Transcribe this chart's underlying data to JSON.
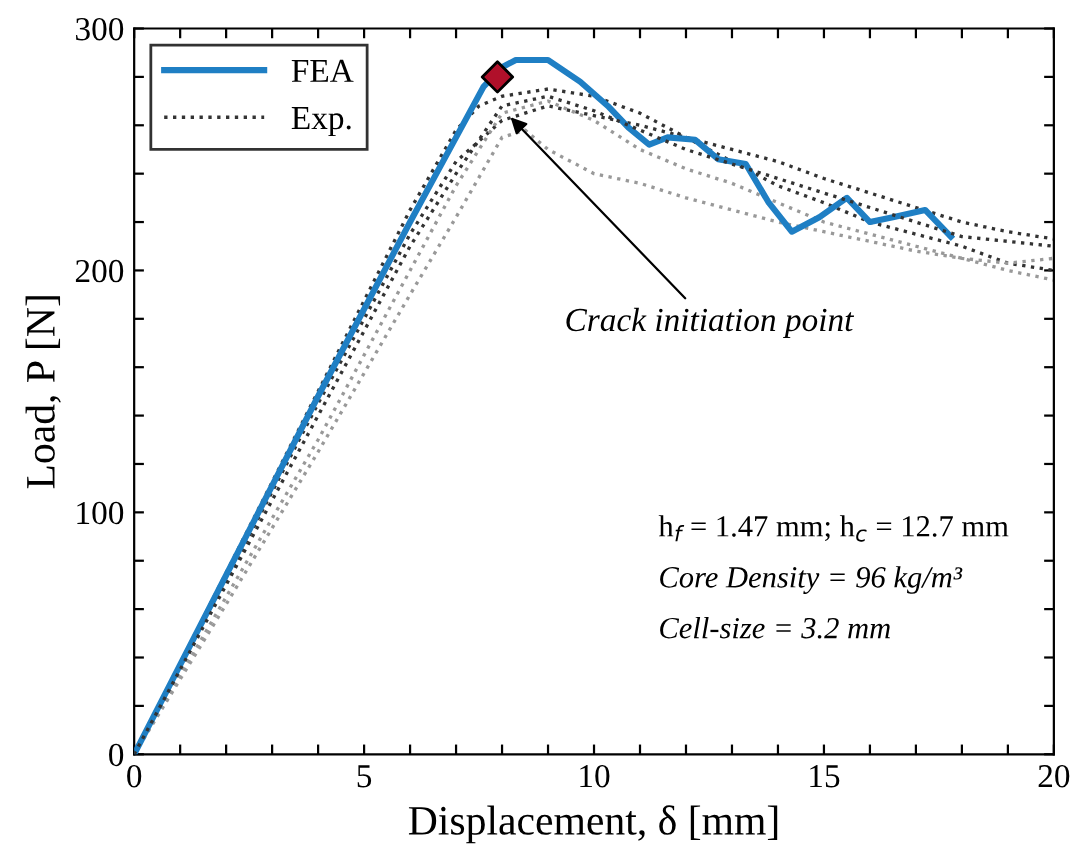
{
  "chart_data": {
    "type": "line",
    "xlabel": "Displacement, δ [mm]",
    "ylabel": "Load, P [N]",
    "xlim": [
      0,
      20
    ],
    "ylim": [
      0,
      300
    ],
    "xticks": [
      0,
      {
        "value": 1,
        "label": null
      },
      {
        "value": 2,
        "label": null
      },
      {
        "value": 3,
        "label": null
      },
      {
        "value": 4,
        "label": null
      },
      5,
      {
        "value": 6,
        "label": null
      },
      {
        "value": 7,
        "label": null
      },
      {
        "value": 8,
        "label": null
      },
      {
        "value": 9,
        "label": null
      },
      10,
      {
        "value": 11,
        "label": null
      },
      {
        "value": 12,
        "label": null
      },
      {
        "value": 13,
        "label": null
      },
      {
        "value": 14,
        "label": null
      },
      15,
      {
        "value": 16,
        "label": null
      },
      {
        "value": 17,
        "label": null
      },
      {
        "value": 18,
        "label": null
      },
      {
        "value": 19,
        "label": null
      },
      20
    ],
    "yticks": [
      0,
      {
        "value": 20,
        "label": null
      },
      {
        "value": 40,
        "label": null
      },
      {
        "value": 60,
        "label": null
      },
      {
        "value": 80,
        "label": null
      },
      100,
      {
        "value": 120,
        "label": null
      },
      {
        "value": 140,
        "label": null
      },
      {
        "value": 160,
        "label": null
      },
      {
        "value": 180,
        "label": null
      },
      200,
      {
        "value": 220,
        "label": null
      },
      {
        "value": 240,
        "label": null
      },
      {
        "value": 260,
        "label": null
      },
      {
        "value": 280,
        "label": null
      },
      300
    ],
    "grid": false,
    "legend": "top left",
    "series": [
      {
        "color": "#333333",
        "line_style": "dotted",
        "x": [
          0,
          2,
          4,
          6,
          7,
          7.5,
          8,
          9,
          10,
          11,
          12,
          13,
          14,
          15,
          16,
          17,
          18,
          19,
          20
        ],
        "values": [
          0,
          75,
          150,
          225,
          258,
          268,
          272,
          275,
          272,
          265,
          255,
          245,
          235,
          228,
          220,
          215,
          210,
          203,
          200
        ]
      },
      {
        "color": "#333333",
        "line_style": "dotted",
        "x": [
          0,
          2,
          4,
          6,
          7,
          8,
          9,
          10,
          11,
          12,
          13,
          14,
          15,
          16,
          17,
          18,
          19,
          20
        ],
        "values": [
          0,
          72,
          145,
          215,
          245,
          262,
          268,
          264,
          260,
          255,
          250,
          245,
          238,
          232,
          226,
          220,
          216,
          213
        ]
      },
      {
        "color": "#999999",
        "line_style": "dotted",
        "x": [
          0,
          2,
          4,
          6,
          7,
          8,
          9,
          10,
          11,
          12,
          13,
          14,
          15,
          16,
          17,
          18,
          19,
          20
        ],
        "values": [
          0,
          65,
          130,
          200,
          235,
          265,
          270,
          262,
          250,
          242,
          236,
          228,
          220,
          215,
          210,
          205,
          200,
          196
        ]
      },
      {
        "color": "#999999",
        "line_style": "dotted",
        "x": [
          0,
          2,
          4,
          6,
          7,
          8,
          8.5,
          9,
          10,
          11,
          12,
          13,
          14,
          15,
          16,
          17,
          18,
          19,
          20
        ],
        "values": [
          0,
          62,
          125,
          190,
          222,
          255,
          258,
          250,
          240,
          236,
          230,
          225,
          220,
          216,
          212,
          208,
          205,
          203,
          205
        ]
      },
      {
        "name": "FEA",
        "color": "#1f7fc4",
        "line_style": "solid",
        "x": [
          0,
          2,
          4,
          6,
          7,
          7.6,
          8.0,
          8.3,
          9.0,
          9.7,
          10.3,
          10.75,
          11.2,
          11.6,
          12.2,
          12.7,
          13.3,
          13.8,
          14.3,
          14.9,
          15.5,
          16.0,
          16.5,
          17.2,
          17.76
        ],
        "values": [
          0,
          74,
          148,
          220,
          255,
          276,
          284,
          287,
          287,
          278,
          268,
          259,
          252,
          255,
          254,
          246,
          244,
          228,
          216,
          222,
          230,
          220,
          222,
          225,
          214
        ]
      },
      {
        "name": "Exp.",
        "color": "#333333",
        "line_style": "dotted",
        "x": [
          0,
          2,
          4,
          6,
          7,
          8,
          9,
          10,
          12,
          14,
          16,
          18,
          20
        ],
        "values": [
          0,
          70,
          140,
          210,
          240,
          268,
          272,
          266,
          250,
          238,
          226,
          214,
          210
        ]
      },
      {
        "type": "scatter",
        "marker": "diamond",
        "color": "#b0102a",
        "x": [
          7.9
        ],
        "values": [
          280
        ]
      }
    ],
    "annotations": [
      {
        "text": "Crack initiation point",
        "x": 8.1,
        "y": 265
      },
      "h$_{f}$ = 1.47 mm; h$_{c}$ = 12.7 mm",
      "Core Density = 96 kg/m³",
      "Cell-size = 3.2 mm"
    ]
  }
}
